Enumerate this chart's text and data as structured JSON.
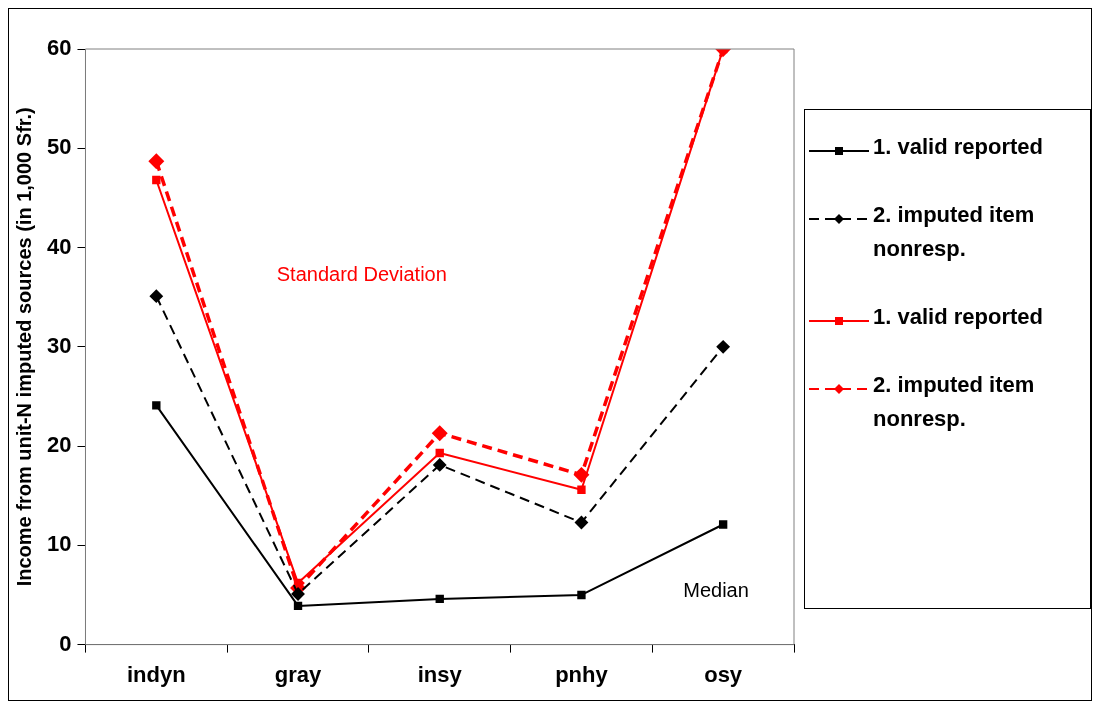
{
  "chart_data": {
    "type": "line",
    "ylabel": "Income from unit-N imputed sources (in 1,000 Sfr.)",
    "categories": [
      "indyn",
      "gray",
      "insy",
      "pnhy",
      "osy"
    ],
    "series": [
      {
        "name": "1. valid reported",
        "color": "#000000",
        "marker": "square",
        "line_style": "solid",
        "values": [
          24.1,
          3.9,
          4.6,
          5.0,
          12.1
        ]
      },
      {
        "name": "2. imputed item nonresp.",
        "color": "#000000",
        "marker": "diamond",
        "line_style": "dashed",
        "values": [
          35.1,
          5.1,
          18.1,
          12.3,
          30.0
        ]
      },
      {
        "name": "1. valid reported",
        "color": "#ff0000",
        "marker": "square",
        "line_style": "solid",
        "values": [
          46.8,
          6.2,
          19.3,
          15.6,
          60.0
        ]
      },
      {
        "name": "2. imputed item nonresp.",
        "color": "#ff0000",
        "marker": "diamond",
        "line_style": "dashed",
        "values": [
          48.7,
          5.7,
          21.3,
          17.1,
          60.0
        ]
      }
    ],
    "ylim": [
      0,
      60
    ],
    "yticks": [
      0,
      10,
      20,
      30,
      40,
      50,
      60
    ],
    "grid": false,
    "legend": "right",
    "annotations": [
      "Standard Deviation",
      "Median"
    ]
  }
}
